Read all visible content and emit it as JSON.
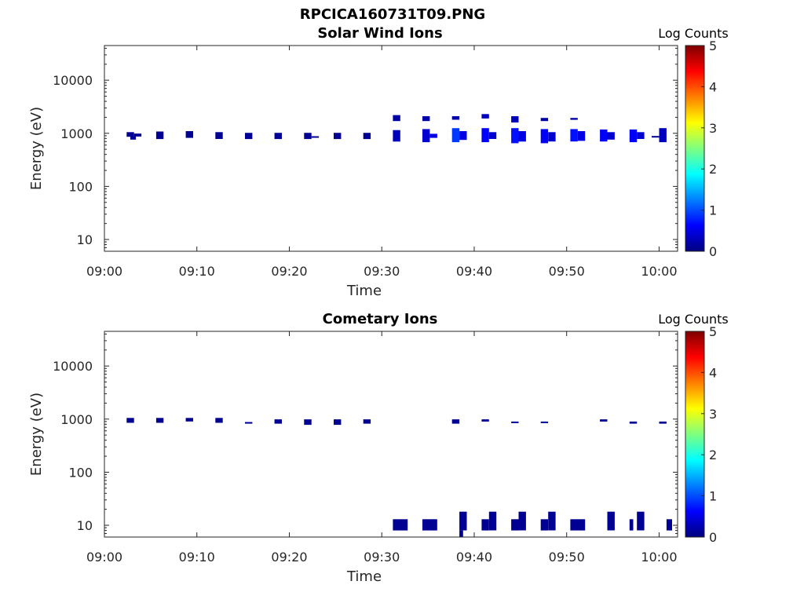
{
  "figure_title": "RPCICA160731T09.PNG",
  "colormap": [
    "#00007f",
    "#0000ff",
    "#007fff",
    "#00ffff",
    "#7fff7f",
    "#ffff00",
    "#ff7f00",
    "#ff0000",
    "#7f0000"
  ],
  "chart_data": [
    {
      "type": "heatmap",
      "title": "Solar Wind Ions",
      "xlabel": "Time",
      "ylabel": "Energy (eV)",
      "x_unit": "minutes after 09:00",
      "xlim": [
        0,
        62
      ],
      "x_ticks": [
        0,
        10,
        20,
        30,
        40,
        50,
        60
      ],
      "x_tick_labels": [
        "09:00",
        "09:10",
        "09:20",
        "09:30",
        "09:40",
        "09:50",
        "10:00"
      ],
      "ylim": [
        6,
        45000
      ],
      "y_scale": "log",
      "y_ticks": [
        10,
        100,
        1000,
        10000
      ],
      "y_tick_labels": [
        "10",
        "100",
        "1000",
        "10000"
      ],
      "colorbar": {
        "label": "Log Counts",
        "range": [
          0,
          5
        ],
        "ticks": [
          "0",
          "1",
          "2",
          "3",
          "4",
          "5"
        ]
      },
      "cells": [
        {
          "t0": 2.4,
          "t1": 3.2,
          "e0": 860,
          "e1": 1050,
          "v": 0.1
        },
        {
          "t0": 2.8,
          "t1": 3.4,
          "e0": 760,
          "e1": 880,
          "v": 0.1
        },
        {
          "t0": 3.2,
          "t1": 4.0,
          "e0": 870,
          "e1": 990,
          "v": 0.1
        },
        {
          "t0": 5.6,
          "t1": 6.4,
          "e0": 780,
          "e1": 1080,
          "v": 0.1
        },
        {
          "t0": 8.8,
          "t1": 9.6,
          "e0": 820,
          "e1": 1100,
          "v": 0.1
        },
        {
          "t0": 12.0,
          "t1": 12.8,
          "e0": 780,
          "e1": 1050,
          "v": 0.1
        },
        {
          "t0": 15.2,
          "t1": 16.0,
          "e0": 780,
          "e1": 1020,
          "v": 0.1
        },
        {
          "t0": 18.4,
          "t1": 19.2,
          "e0": 780,
          "e1": 1020,
          "v": 0.1
        },
        {
          "t0": 21.6,
          "t1": 22.4,
          "e0": 780,
          "e1": 1020,
          "v": 0.1
        },
        {
          "t0": 22.4,
          "t1": 23.2,
          "e0": 830,
          "e1": 880,
          "v": 0.1
        },
        {
          "t0": 24.8,
          "t1": 25.6,
          "e0": 780,
          "e1": 1020,
          "v": 0.1
        },
        {
          "t0": 28.0,
          "t1": 28.8,
          "e0": 780,
          "e1": 1020,
          "v": 0.1
        },
        {
          "t0": 31.2,
          "t1": 32.0,
          "e0": 1700,
          "e1": 2200,
          "v": 0.2
        },
        {
          "t0": 31.2,
          "t1": 32.0,
          "e0": 700,
          "e1": 1150,
          "v": 0.3
        },
        {
          "t0": 34.4,
          "t1": 35.2,
          "e0": 1700,
          "e1": 2100,
          "v": 0.2
        },
        {
          "t0": 34.4,
          "t1": 35.2,
          "e0": 680,
          "e1": 1200,
          "v": 0.4
        },
        {
          "t0": 35.2,
          "t1": 36.0,
          "e0": 820,
          "e1": 980,
          "v": 0.5
        },
        {
          "t0": 37.6,
          "t1": 38.4,
          "e0": 1800,
          "e1": 2100,
          "v": 0.2
        },
        {
          "t0": 37.6,
          "t1": 38.4,
          "e0": 680,
          "e1": 1250,
          "v": 0.9
        },
        {
          "t0": 38.4,
          "t1": 39.2,
          "e0": 750,
          "e1": 1100,
          "v": 0.5
        },
        {
          "t0": 40.8,
          "t1": 41.6,
          "e0": 1900,
          "e1": 2300,
          "v": 0.3
        },
        {
          "t0": 40.8,
          "t1": 41.6,
          "e0": 680,
          "e1": 1250,
          "v": 0.6
        },
        {
          "t0": 41.6,
          "t1": 42.4,
          "e0": 780,
          "e1": 1050,
          "v": 0.4
        },
        {
          "t0": 44.0,
          "t1": 44.8,
          "e0": 1600,
          "e1": 2100,
          "v": 0.3
        },
        {
          "t0": 44.0,
          "t1": 44.8,
          "e0": 650,
          "e1": 1250,
          "v": 0.7
        },
        {
          "t0": 44.8,
          "t1": 45.6,
          "e0": 700,
          "e1": 1100,
          "v": 0.5
        },
        {
          "t0": 47.2,
          "t1": 48.0,
          "e0": 1700,
          "e1": 1950,
          "v": 0.2
        },
        {
          "t0": 47.2,
          "t1": 48.0,
          "e0": 650,
          "e1": 1200,
          "v": 0.6
        },
        {
          "t0": 48.0,
          "t1": 48.8,
          "e0": 700,
          "e1": 1050,
          "v": 0.4
        },
        {
          "t0": 50.4,
          "t1": 51.2,
          "e0": 1800,
          "e1": 1950,
          "v": 0.2
        },
        {
          "t0": 50.4,
          "t1": 51.2,
          "e0": 700,
          "e1": 1200,
          "v": 0.7
        },
        {
          "t0": 51.2,
          "t1": 52.0,
          "e0": 720,
          "e1": 1100,
          "v": 0.5
        },
        {
          "t0": 53.6,
          "t1": 54.4,
          "e0": 700,
          "e1": 1180,
          "v": 0.6
        },
        {
          "t0": 54.4,
          "t1": 55.2,
          "e0": 760,
          "e1": 1050,
          "v": 0.4
        },
        {
          "t0": 56.8,
          "t1": 57.6,
          "e0": 680,
          "e1": 1180,
          "v": 0.6
        },
        {
          "t0": 57.6,
          "t1": 58.4,
          "e0": 780,
          "e1": 1050,
          "v": 0.4
        },
        {
          "t0": 59.2,
          "t1": 60.0,
          "e0": 840,
          "e1": 890,
          "v": 0.1
        },
        {
          "t0": 60.0,
          "t1": 60.8,
          "e0": 680,
          "e1": 1250,
          "v": 0.3
        }
      ]
    },
    {
      "type": "heatmap",
      "title": "Cometary Ions",
      "xlabel": "Time",
      "ylabel": "Energy (eV)",
      "x_unit": "minutes after 09:00",
      "xlim": [
        0,
        62
      ],
      "x_ticks": [
        0,
        10,
        20,
        30,
        40,
        50,
        60
      ],
      "x_tick_labels": [
        "09:00",
        "09:10",
        "09:20",
        "09:30",
        "09:40",
        "09:50",
        "10:00"
      ],
      "ylim": [
        6,
        45000
      ],
      "y_scale": "log",
      "y_ticks": [
        10,
        100,
        1000,
        10000
      ],
      "y_tick_labels": [
        "10",
        "100",
        "1000",
        "10000"
      ],
      "colorbar": {
        "label": "Log Counts",
        "range": [
          0,
          5
        ],
        "ticks": [
          "0",
          "1",
          "2",
          "3",
          "4",
          "5"
        ]
      },
      "cells": [
        {
          "t0": 2.4,
          "t1": 3.2,
          "e0": 850,
          "e1": 1050,
          "v": 0.1
        },
        {
          "t0": 5.6,
          "t1": 6.4,
          "e0": 850,
          "e1": 1050,
          "v": 0.1
        },
        {
          "t0": 8.8,
          "t1": 9.6,
          "e0": 900,
          "e1": 1050,
          "v": 0.1
        },
        {
          "t0": 12.0,
          "t1": 12.8,
          "e0": 850,
          "e1": 1050,
          "v": 0.1
        },
        {
          "t0": 15.2,
          "t1": 16.0,
          "e0": 820,
          "e1": 880,
          "v": 0.1
        },
        {
          "t0": 18.4,
          "t1": 19.2,
          "e0": 820,
          "e1": 990,
          "v": 0.1
        },
        {
          "t0": 21.6,
          "t1": 22.4,
          "e0": 780,
          "e1": 990,
          "v": 0.1
        },
        {
          "t0": 24.8,
          "t1": 25.6,
          "e0": 780,
          "e1": 990,
          "v": 0.1
        },
        {
          "t0": 28.0,
          "t1": 28.8,
          "e0": 820,
          "e1": 990,
          "v": 0.1
        },
        {
          "t0": 37.6,
          "t1": 38.4,
          "e0": 820,
          "e1": 990,
          "v": 0.1
        },
        {
          "t0": 40.8,
          "t1": 41.6,
          "e0": 900,
          "e1": 990,
          "v": 0.1
        },
        {
          "t0": 44.0,
          "t1": 44.8,
          "e0": 840,
          "e1": 900,
          "v": 0.1
        },
        {
          "t0": 47.2,
          "t1": 48.0,
          "e0": 840,
          "e1": 900,
          "v": 0.1
        },
        {
          "t0": 53.6,
          "t1": 54.4,
          "e0": 900,
          "e1": 990,
          "v": 0.1
        },
        {
          "t0": 56.8,
          "t1": 57.6,
          "e0": 820,
          "e1": 900,
          "v": 0.1
        },
        {
          "t0": 60.0,
          "t1": 60.8,
          "e0": 820,
          "e1": 900,
          "v": 0.1
        },
        {
          "t0": 31.2,
          "t1": 32.8,
          "e0": 8,
          "e1": 13,
          "v": 0.1
        },
        {
          "t0": 34.4,
          "t1": 36.0,
          "e0": 8,
          "e1": 13,
          "v": 0.1
        },
        {
          "t0": 38.4,
          "t1": 39.2,
          "e0": 8,
          "e1": 18,
          "v": 0.1
        },
        {
          "t0": 38.4,
          "t1": 38.8,
          "e0": 6,
          "e1": 8,
          "v": 0.1
        },
        {
          "t0": 40.8,
          "t1": 41.6,
          "e0": 8,
          "e1": 13,
          "v": 0.1
        },
        {
          "t0": 41.6,
          "t1": 42.4,
          "e0": 8,
          "e1": 18,
          "v": 0.1
        },
        {
          "t0": 44.0,
          "t1": 44.8,
          "e0": 8,
          "e1": 13,
          "v": 0.1
        },
        {
          "t0": 44.8,
          "t1": 45.6,
          "e0": 8,
          "e1": 18,
          "v": 0.1
        },
        {
          "t0": 47.2,
          "t1": 48.0,
          "e0": 8,
          "e1": 13,
          "v": 0.1
        },
        {
          "t0": 48.0,
          "t1": 48.8,
          "e0": 8,
          "e1": 18,
          "v": 0.1
        },
        {
          "t0": 50.4,
          "t1": 52.0,
          "e0": 8,
          "e1": 13,
          "v": 0.1
        },
        {
          "t0": 54.4,
          "t1": 55.2,
          "e0": 8,
          "e1": 18,
          "v": 0.1
        },
        {
          "t0": 56.8,
          "t1": 57.2,
          "e0": 8,
          "e1": 13,
          "v": 0.1
        },
        {
          "t0": 57.6,
          "t1": 58.4,
          "e0": 8,
          "e1": 18,
          "v": 0.1
        },
        {
          "t0": 60.8,
          "t1": 61.4,
          "e0": 8,
          "e1": 13,
          "v": 0.1
        }
      ]
    }
  ]
}
